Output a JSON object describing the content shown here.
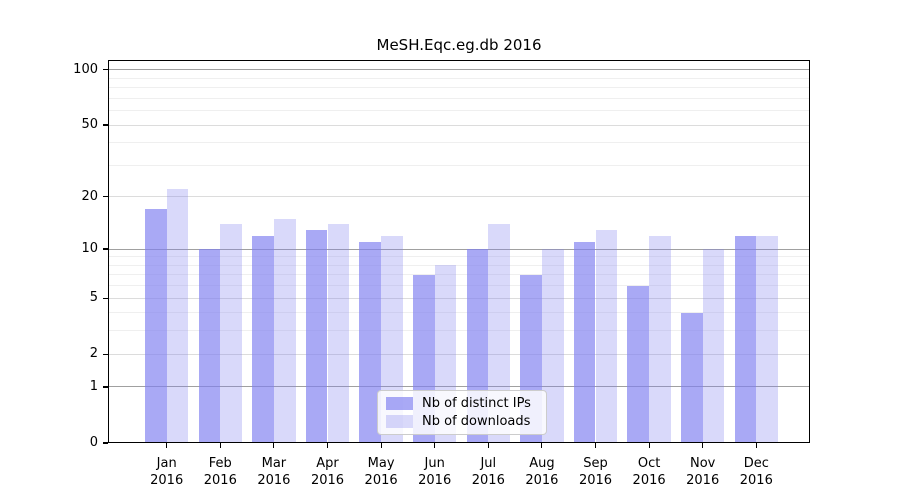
{
  "title": "MeSH.Eqc.eg.db 2016",
  "colors": {
    "series": [
      "rgba(128,128,240,0.68)",
      "rgba(128,128,240,0.30)"
    ],
    "grid_major": "#a0a0a0",
    "grid_mid": "#dcdcdc",
    "grid_minor": "#efefef",
    "axis": "#000000"
  },
  "legend": {
    "items": [
      {
        "label": "Nb of distinct IPs"
      },
      {
        "label": "Nb of downloads"
      }
    ]
  },
  "chart_data": {
    "type": "bar",
    "title": "MeSH.Eqc.eg.db 2016",
    "categories": [
      "Jan",
      "Feb",
      "Mar",
      "Apr",
      "May",
      "Jun",
      "Jul",
      "Aug",
      "Sep",
      "Oct",
      "Nov",
      "Dec"
    ],
    "year": "2016",
    "series": [
      {
        "name": "Nb of distinct IPs",
        "key": "distinct-ips",
        "values": [
          17,
          10,
          12,
          13,
          11,
          7,
          10,
          7,
          11,
          6,
          4,
          12
        ]
      },
      {
        "name": "Nb of downloads",
        "key": "downloads",
        "values": [
          22,
          14,
          15,
          14,
          12,
          8,
          14,
          10,
          13,
          12,
          10,
          12
        ]
      }
    ],
    "xlabel": "",
    "ylabel": "",
    "yscale": "log1p",
    "ylim": [
      0,
      113
    ],
    "yticks": [
      0,
      1,
      2,
      5,
      10,
      20,
      50,
      100
    ],
    "grid": {
      "major": [
        1,
        10,
        100
      ],
      "mid": [
        2,
        5,
        20,
        50
      ],
      "minor": [
        3,
        4,
        6,
        7,
        8,
        9,
        30,
        40,
        60,
        70,
        80,
        90
      ]
    },
    "grid_on": true,
    "legend_position": "inside-bottom-center"
  }
}
